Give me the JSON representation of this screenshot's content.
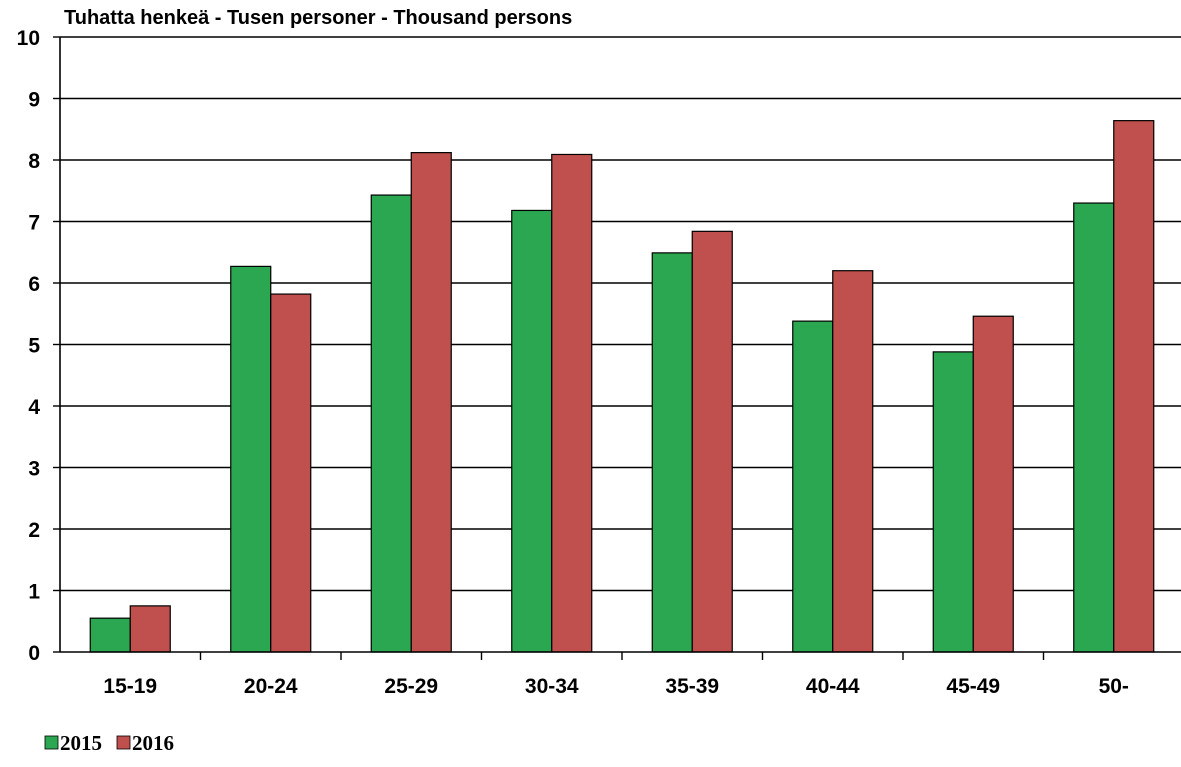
{
  "chart_data": {
    "type": "bar",
    "title": "",
    "ylabel": "Tuhatta henkeä - Tusen personer -  Thousand persons",
    "xlabel": "",
    "ylim": [
      0,
      10
    ],
    "yticks": [
      "0",
      "1",
      "2",
      "3",
      "4",
      "5",
      "6",
      "7",
      "8",
      "9",
      "10"
    ],
    "grid": true,
    "legend_position": "bottom-left",
    "categories": [
      "15-19",
      "20-24",
      "25-29",
      "30-34",
      "35-39",
      "40-44",
      "45-49",
      "50-"
    ],
    "series": [
      {
        "name": "2015",
        "color": "#2ba651",
        "values": [
          0.55,
          6.27,
          7.43,
          7.18,
          6.49,
          5.38,
          4.88,
          7.3
        ]
      },
      {
        "name": "2016",
        "color": "#c0504d",
        "values": [
          0.75,
          5.82,
          8.12,
          8.09,
          6.84,
          6.2,
          5.46,
          8.64
        ]
      }
    ]
  }
}
